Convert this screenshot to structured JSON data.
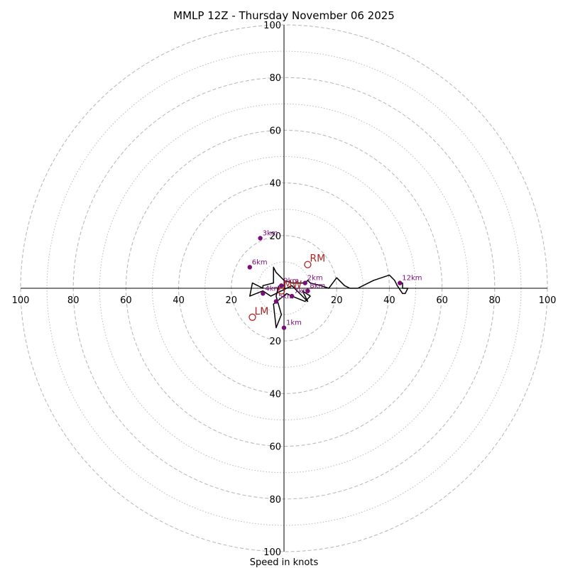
{
  "chart_data": {
    "type": "hodograph",
    "title": "MMLP 12Z - Thursday November 06 2025",
    "xlabel": "Speed in knots",
    "ylabel": "",
    "speed_unit": "knots",
    "rlim": [
      0,
      100
    ],
    "ring_major": [
      20,
      40,
      60,
      80,
      100
    ],
    "ring_minor": [
      10,
      30,
      50,
      70,
      90
    ],
    "tick_labels": [
      "20",
      "40",
      "60",
      "80",
      "100"
    ],
    "grid": true,
    "colors": {
      "trace": "#000000",
      "height_marker": "#7b0c7b",
      "storm_motion": "#b22222",
      "grid": "#bbbbbb",
      "axis": "#000000"
    },
    "trace": {
      "name": "wind profile",
      "u": [
        -2,
        -3,
        -1,
        -3,
        -4,
        1,
        3,
        8,
        10,
        7,
        8,
        9,
        3,
        -5,
        -8,
        -13,
        -12,
        -8,
        -8,
        -4,
        -4,
        -3,
        0,
        3,
        8,
        9,
        10,
        14,
        17,
        20,
        23,
        25,
        28,
        34,
        37,
        40,
        42,
        43,
        45,
        46,
        47,
        45,
        45,
        44
      ],
      "v": [
        1,
        -3,
        -10,
        -15,
        -6,
        -2,
        -3,
        -5,
        -3,
        -1,
        -3,
        -5,
        1,
        -3,
        -1,
        -3,
        2,
        0,
        1,
        2,
        8,
        6,
        3,
        2,
        2,
        3,
        2,
        1,
        0,
        4,
        1,
        0,
        0,
        3,
        4,
        5,
        3,
        1,
        -2,
        -2,
        0,
        0,
        2,
        2
      ]
    },
    "height_markers": [
      {
        "label": "1km",
        "u": 0,
        "v": -15
      },
      {
        "label": "2km",
        "u": 8,
        "v": 2
      },
      {
        "label": "3km",
        "u": -9,
        "v": 19
      },
      {
        "label": "4km",
        "u": -8,
        "v": -2
      },
      {
        "label": "5km",
        "u": -3,
        "v": -5
      },
      {
        "label": "6km",
        "u": -13,
        "v": 8
      },
      {
        "label": "7km",
        "u": 3,
        "v": -3
      },
      {
        "label": "8km",
        "u": 9,
        "v": -1
      },
      {
        "label": "9km",
        "u": -1,
        "v": 1
      },
      {
        "label": "12km",
        "u": 44,
        "v": 2
      }
    ],
    "storm_motion": [
      {
        "label": "RM",
        "u": 9,
        "v": 9
      },
      {
        "label": "LM",
        "u": -12,
        "v": -11
      },
      {
        "label": "MW",
        "u": -1,
        "v": -1
      }
    ]
  }
}
